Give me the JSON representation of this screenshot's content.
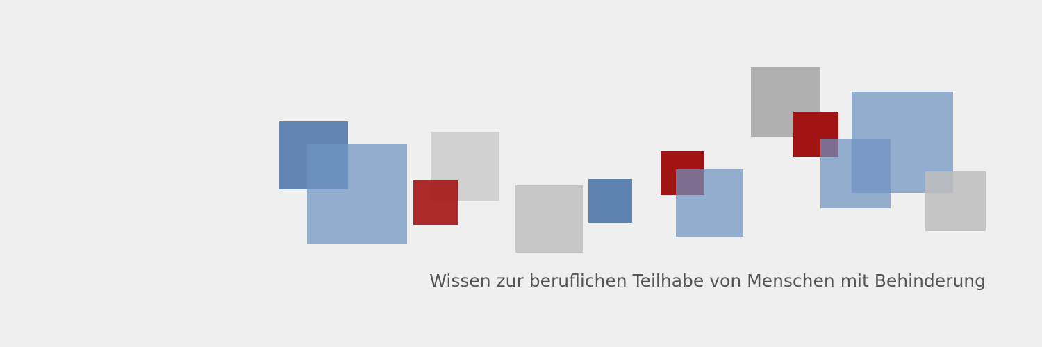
{
  "tagline": "Wissen zur beruflichen Teilhabe von Menschen mit Behinderung"
}
